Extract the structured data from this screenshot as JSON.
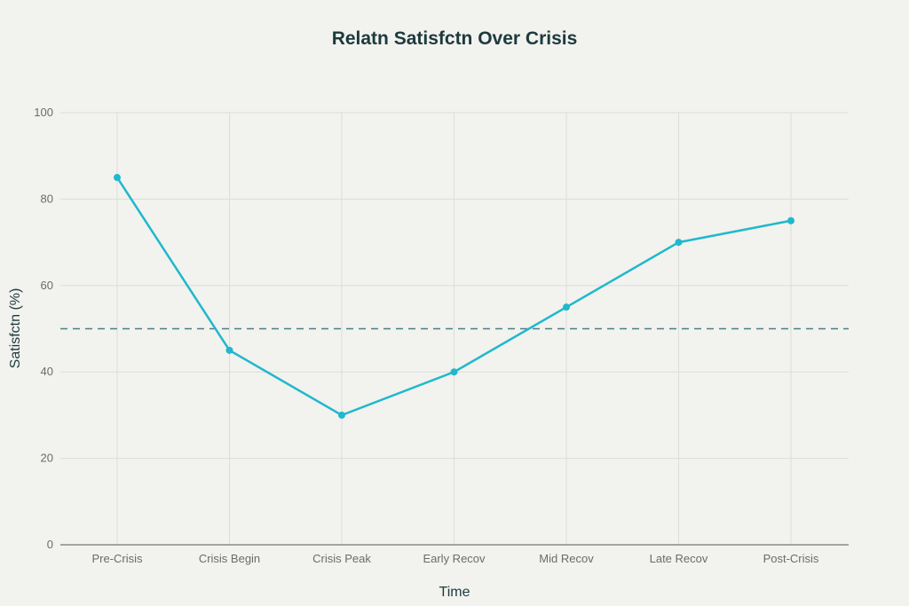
{
  "chart_data": {
    "type": "line",
    "title": "Relatn Satisfctn Over Crisis",
    "xlabel": "Time",
    "ylabel": "Satisfctn (%)",
    "categories": [
      "Pre-Crisis",
      "Crisis Begin",
      "Crisis Peak",
      "Early Recov",
      "Mid Recov",
      "Late Recov",
      "Post-Crisis"
    ],
    "values": [
      85,
      45,
      30,
      40,
      55,
      70,
      75
    ],
    "ylim": [
      0,
      100
    ],
    "yticks": [
      0,
      20,
      40,
      60,
      80,
      100
    ],
    "reference_line": {
      "y": 50,
      "style": "dashed",
      "color": "#4a7f86"
    },
    "grid": true,
    "line_color": "#1fb8cd"
  }
}
